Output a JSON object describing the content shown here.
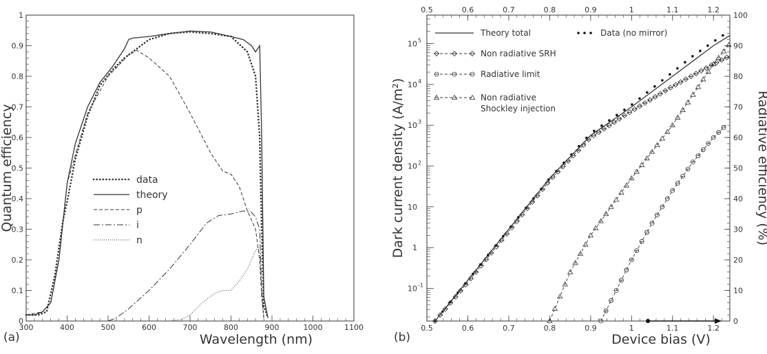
{
  "chart_data": [
    {
      "panel": "(a)",
      "type": "line",
      "xlabel": "Wavelength (nm)",
      "ylabel": "Quantum efficiency",
      "xlim": [
        300,
        1100
      ],
      "ylim": [
        0,
        1
      ],
      "xticks": [
        "300",
        "400",
        "500",
        "600",
        "700",
        "800",
        "900",
        "1000",
        "1100"
      ],
      "yticks": [
        "0",
        "0.1",
        "0.2",
        "0.3",
        "0.4",
        "0.5",
        "0.6",
        "0.7",
        "0.8",
        "0.9",
        "1"
      ],
      "grid": false,
      "legend_position": "center-left",
      "series": [
        {
          "name": "data",
          "style": "dotted-bold",
          "x": [
            300,
            330,
            350,
            370,
            390,
            400,
            420,
            450,
            480,
            510,
            540,
            560,
            600,
            650,
            700,
            750,
            800,
            840,
            860,
            870,
            875,
            880,
            890
          ],
          "y": [
            0.02,
            0.02,
            0.03,
            0.15,
            0.33,
            0.39,
            0.53,
            0.67,
            0.77,
            0.82,
            0.86,
            0.88,
            0.92,
            0.94,
            0.945,
            0.94,
            0.93,
            0.88,
            0.8,
            0.6,
            0.3,
            0.05,
            0.01
          ]
        },
        {
          "name": "theory",
          "style": "solid",
          "x": [
            300,
            320,
            340,
            360,
            380,
            400,
            420,
            450,
            480,
            510,
            540,
            550,
            560,
            600,
            650,
            700,
            750,
            800,
            830,
            850,
            860,
            870,
            875,
            880,
            890
          ],
          "y": [
            0.02,
            0.02,
            0.03,
            0.06,
            0.2,
            0.45,
            0.58,
            0.7,
            0.78,
            0.83,
            0.89,
            0.92,
            0.925,
            0.93,
            0.94,
            0.948,
            0.945,
            0.93,
            0.92,
            0.9,
            0.88,
            0.9,
            0.6,
            0.08,
            0.01
          ]
        },
        {
          "name": "p",
          "style": "dashed",
          "x": [
            300,
            340,
            360,
            380,
            400,
            450,
            500,
            550,
            570,
            600,
            650,
            700,
            750,
            780,
            800,
            820,
            840,
            860,
            870,
            875,
            880
          ],
          "y": [
            0.02,
            0.03,
            0.06,
            0.2,
            0.45,
            0.68,
            0.8,
            0.87,
            0.885,
            0.86,
            0.8,
            0.68,
            0.55,
            0.49,
            0.48,
            0.44,
            0.36,
            0.3,
            0.2,
            0.08,
            0.01
          ]
        },
        {
          "name": "i",
          "style": "dash-dot",
          "x": [
            500,
            520,
            550,
            600,
            650,
            700,
            740,
            770,
            800,
            830,
            850,
            860,
            870,
            875,
            880
          ],
          "y": [
            0,
            0.01,
            0.04,
            0.1,
            0.17,
            0.25,
            0.32,
            0.345,
            0.35,
            0.36,
            0.355,
            0.34,
            0.3,
            0.1,
            0.01
          ]
        },
        {
          "name": "n",
          "style": "dotted",
          "x": [
            650,
            680,
            700,
            730,
            760,
            780,
            800,
            820,
            840,
            850,
            860,
            866,
            870,
            875,
            880
          ],
          "y": [
            0,
            0.005,
            0.02,
            0.06,
            0.09,
            0.1,
            0.1,
            0.13,
            0.17,
            0.2,
            0.23,
            0.24,
            0.22,
            0.1,
            0.01
          ]
        }
      ]
    },
    {
      "panel": "(b)",
      "type": "line",
      "xlabel": "Device bias (V)",
      "ylabel": "Dark current density (A/m²)",
      "y2label": "Radiative efficiency (%)",
      "xlim": [
        0.5,
        1.24
      ],
      "yscale": "log",
      "ylim_log10": [
        -1.8,
        5.7
      ],
      "y2lim": [
        0,
        100
      ],
      "xticks_bottom": [
        "0.5",
        "0.6",
        "0.7",
        "0.8",
        "0.9",
        "1",
        "1.1",
        "1.2"
      ],
      "xticks_top": [
        "0.5",
        "0.6",
        "0.7",
        "0.8",
        "0.9",
        "1",
        "1.1",
        "1.2"
      ],
      "yticks_log": [
        {
          "label": "10",
          "sup": "-1",
          "exp": -1
        },
        {
          "label": "1",
          "sup": "",
          "exp": 0
        },
        {
          "label": "10",
          "sup": "",
          "exp": 1
        },
        {
          "label": "10",
          "sup": "2",
          "exp": 2
        },
        {
          "label": "10",
          "sup": "3",
          "exp": 3
        },
        {
          "label": "10",
          "sup": "4",
          "exp": 4
        },
        {
          "label": "10",
          "sup": "5",
          "exp": 5
        }
      ],
      "y2ticks": [
        "0",
        "10",
        "20",
        "30",
        "40",
        "50",
        "60",
        "70",
        "80",
        "90",
        "100"
      ],
      "grid": false,
      "legend_position": "top-left",
      "series": [
        {
          "name": "Theory total",
          "style": "solid",
          "x": [
            0.52,
            0.6,
            0.7,
            0.8,
            0.9,
            1.0,
            1.1,
            1.2,
            1.24
          ],
          "log10_y": [
            -1.8,
            -0.8,
            0.45,
            1.7,
            2.75,
            3.45,
            4.2,
            4.95,
            5.2
          ]
        },
        {
          "name": "Data (no mirror)",
          "style": "dots",
          "x": [
            0.52,
            0.6,
            0.7,
            0.8,
            0.9,
            1.0,
            1.05,
            1.1,
            1.15,
            1.2,
            1.23
          ],
          "log10_y": [
            -1.8,
            -0.8,
            0.45,
            1.7,
            2.8,
            3.5,
            3.9,
            4.3,
            4.7,
            5.05,
            5.25
          ]
        },
        {
          "name": "Non radiative SRH",
          "style": "dashed-diamond",
          "x": [
            0.52,
            0.6,
            0.7,
            0.8,
            0.9,
            1.0,
            1.1,
            1.2,
            1.24
          ],
          "log10_y": [
            -1.8,
            -0.85,
            0.4,
            1.65,
            2.7,
            3.35,
            3.95,
            4.5,
            4.7
          ]
        },
        {
          "name": "Radiative limit",
          "style": "dashed-circle",
          "x": [
            0.925,
            1.0,
            1.05,
            1.1,
            1.15,
            1.2,
            1.23
          ],
          "log10_y": [
            -1.8,
            -0.3,
            0.6,
            1.4,
            2.1,
            2.7,
            3.0
          ]
        },
        {
          "name": "Non radiative\nShockley injection",
          "style": "dashed-triangle",
          "x": [
            0.8,
            0.85,
            0.9,
            0.95,
            1.0,
            1.05,
            1.1,
            1.15,
            1.2,
            1.24
          ],
          "log10_y": [
            -1.8,
            -0.6,
            0.3,
            1.0,
            1.7,
            2.35,
            3.0,
            3.75,
            4.5,
            5.0
          ]
        },
        {
          "name": "",
          "axis": "right",
          "style": "arrow",
          "x": [
            1.04,
            1.22
          ],
          "y": [
            0,
            0
          ]
        }
      ]
    }
  ]
}
